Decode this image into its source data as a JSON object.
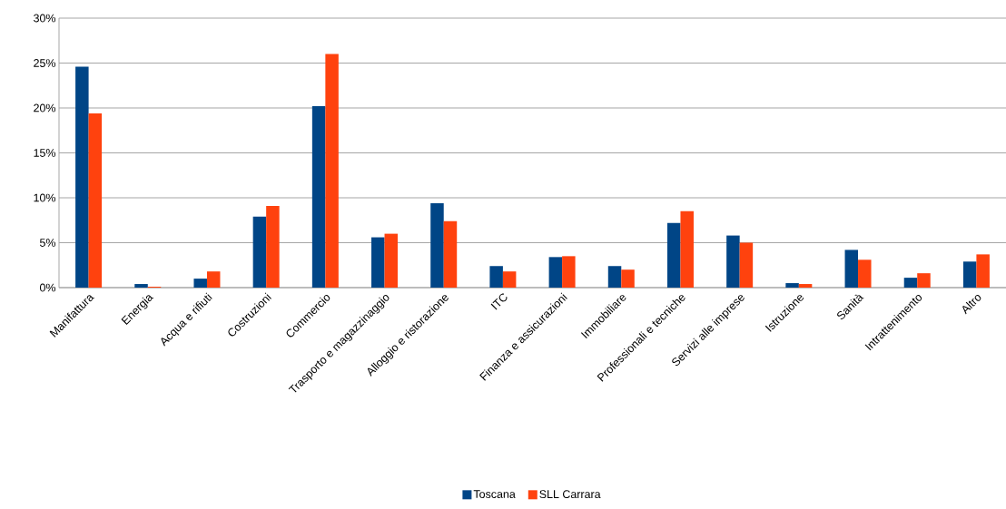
{
  "chart_data": {
    "type": "bar",
    "categories": [
      "Manifattura",
      "Energia",
      "Acqua e rifiuti",
      "Costruzioni",
      "Commercio",
      "Trasporto e magazzinaggio",
      "Alloggio e ristorazione",
      "ITC",
      "Finanza e assicurazioni",
      "Immobiliare",
      "Professionali e tecniche",
      "Servizi alle imprese",
      "Istruzione",
      "Sanità",
      "Intrattenimento",
      "Altro"
    ],
    "series": [
      {
        "name": "Toscana",
        "color": "#004586",
        "values": [
          24.6,
          0.4,
          1.0,
          7.9,
          20.2,
          5.6,
          9.4,
          2.4,
          3.4,
          2.4,
          7.2,
          5.8,
          0.5,
          4.2,
          1.1,
          2.9
        ]
      },
      {
        "name": "SLL Carrara",
        "color": "#ff420e",
        "values": [
          19.4,
          0.1,
          1.8,
          9.1,
          26.0,
          6.0,
          7.4,
          1.8,
          3.5,
          2.0,
          8.5,
          5.0,
          0.4,
          3.1,
          1.6,
          3.7
        ]
      }
    ],
    "ylim": [
      0,
      30
    ],
    "yticks": [
      {
        "value": 0,
        "label": "0%"
      },
      {
        "value": 5,
        "label": "5%"
      },
      {
        "value": 10,
        "label": "10%"
      },
      {
        "value": 15,
        "label": "15%"
      },
      {
        "value": 20,
        "label": "20%"
      },
      {
        "value": 25,
        "label": "25%"
      },
      {
        "value": 30,
        "label": "30%"
      }
    ],
    "grid": "y",
    "legend": "bottom"
  }
}
